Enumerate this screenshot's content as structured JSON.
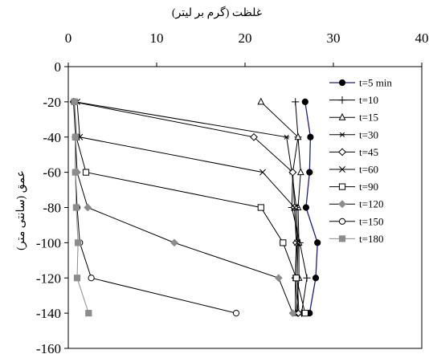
{
  "chart_data": {
    "type": "line",
    "xlabel": "غلظت (گرم بر ليتر)",
    "ylabel": "عمق (سانتی متر)",
    "xlim": [
      0,
      40
    ],
    "ylim": [
      -160,
      0
    ],
    "x_ticks": [
      "0",
      "10",
      "20",
      "30",
      "40"
    ],
    "y_ticks": [
      "0",
      "-20",
      "-40",
      "-60",
      "-80",
      "-100",
      "-120",
      "-140",
      "-160"
    ],
    "x_axis_position": "top",
    "grid": false,
    "legend_position": "right",
    "depths": [
      -20,
      -40,
      -60,
      -80,
      -100,
      -120,
      -140
    ],
    "series": [
      {
        "name": "t=5 min",
        "marker": "circle-filled",
        "color": "#1c1c8c",
        "markerColor": "#000000",
        "x": [
          26.8,
          27.4,
          27.3,
          26.9,
          28.2,
          28.0,
          27.3
        ]
      },
      {
        "name": "t=10",
        "marker": "plus",
        "color": "#000000",
        "markerColor": "#000000",
        "x": [
          25.7,
          26.0,
          25.4,
          25.3,
          26.2,
          27.0,
          26.4
        ]
      },
      {
        "name": "t=15",
        "marker": "triangle",
        "color": "#000000",
        "markerColor": "#000000",
        "x": [
          21.8,
          26.0,
          26.3,
          26.0,
          26.1,
          26.1,
          25.8
        ]
      },
      {
        "name": "t=30",
        "marker": "star",
        "color": "#000000",
        "markerColor": "#000000",
        "x": [
          0.8,
          24.7,
          25.3,
          25.8,
          26.0,
          25.9,
          26.1
        ]
      },
      {
        "name": "t=45",
        "marker": "diamond",
        "color": "#000000",
        "markerColor": "#000000",
        "x": [
          0.6,
          21.0,
          25.4,
          25.6,
          25.8,
          25.7,
          26.0
        ]
      },
      {
        "name": "t=60",
        "marker": "x",
        "color": "#000000",
        "markerColor": "#000000",
        "x": [
          1.0,
          1.3,
          22.0,
          25.6,
          25.9,
          25.7,
          25.7
        ]
      },
      {
        "name": "t=90",
        "marker": "square",
        "color": "#000000",
        "markerColor": "#000000",
        "x": [
          0.7,
          0.9,
          2.0,
          21.8,
          24.3,
          25.8,
          26.8
        ]
      },
      {
        "name": "t=120",
        "marker": "diamond-filled",
        "color": "#000000",
        "markerColor": "#8c8c8c",
        "x": [
          0.7,
          0.8,
          1.0,
          2.2,
          12.0,
          23.8,
          25.4
        ]
      },
      {
        "name": "t=150",
        "marker": "circle",
        "color": "#000000",
        "markerColor": "#000000",
        "x": [
          0.6,
          0.8,
          0.8,
          1.0,
          1.3,
          2.6,
          19.0
        ]
      },
      {
        "name": "t=180",
        "marker": "square-filled",
        "color": "#8c8c8c",
        "markerColor": "#8c8c8c",
        "x": [
          0.7,
          0.8,
          0.8,
          0.9,
          1.1,
          1.0,
          2.3
        ]
      }
    ]
  }
}
